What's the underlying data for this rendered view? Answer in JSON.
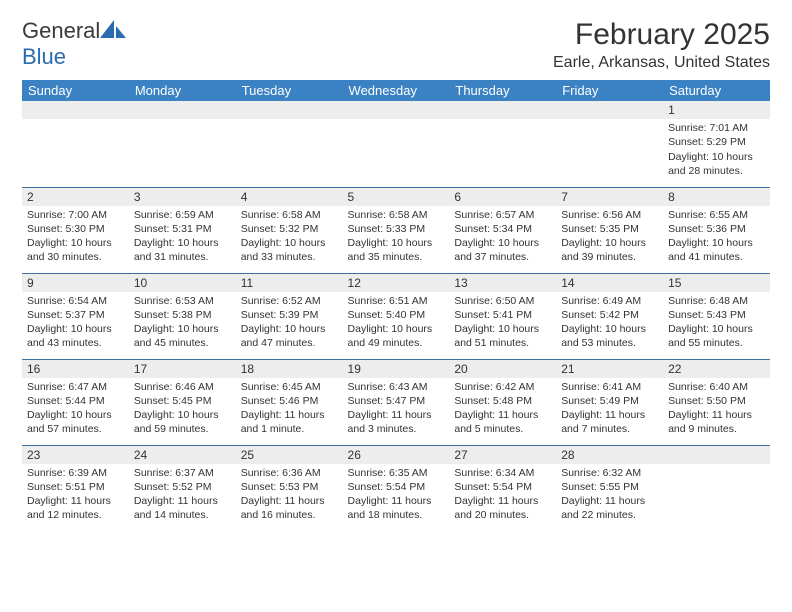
{
  "brand": {
    "name_part1": "General",
    "name_part2": "Blue",
    "icon_color": "#2b6cb0"
  },
  "title": {
    "month_year": "February 2025",
    "location": "Earle, Arkansas, United States"
  },
  "styling": {
    "header_bg": "#3b82c4",
    "header_text": "#ffffff",
    "daynum_bg": "#ededed",
    "border_color": "#3b6fa0",
    "body_text": "#333333",
    "title_fontsize": 30,
    "location_fontsize": 16,
    "day_fontsize": 10.5
  },
  "weekdays": [
    "Sunday",
    "Monday",
    "Tuesday",
    "Wednesday",
    "Thursday",
    "Friday",
    "Saturday"
  ],
  "weeks": [
    [
      {
        "n": "",
        "sunrise": "",
        "sunset": "",
        "daylight": ""
      },
      {
        "n": "",
        "sunrise": "",
        "sunset": "",
        "daylight": ""
      },
      {
        "n": "",
        "sunrise": "",
        "sunset": "",
        "daylight": ""
      },
      {
        "n": "",
        "sunrise": "",
        "sunset": "",
        "daylight": ""
      },
      {
        "n": "",
        "sunrise": "",
        "sunset": "",
        "daylight": ""
      },
      {
        "n": "",
        "sunrise": "",
        "sunset": "",
        "daylight": ""
      },
      {
        "n": "1",
        "sunrise": "Sunrise: 7:01 AM",
        "sunset": "Sunset: 5:29 PM",
        "daylight": "Daylight: 10 hours and 28 minutes."
      }
    ],
    [
      {
        "n": "2",
        "sunrise": "Sunrise: 7:00 AM",
        "sunset": "Sunset: 5:30 PM",
        "daylight": "Daylight: 10 hours and 30 minutes."
      },
      {
        "n": "3",
        "sunrise": "Sunrise: 6:59 AM",
        "sunset": "Sunset: 5:31 PM",
        "daylight": "Daylight: 10 hours and 31 minutes."
      },
      {
        "n": "4",
        "sunrise": "Sunrise: 6:58 AM",
        "sunset": "Sunset: 5:32 PM",
        "daylight": "Daylight: 10 hours and 33 minutes."
      },
      {
        "n": "5",
        "sunrise": "Sunrise: 6:58 AM",
        "sunset": "Sunset: 5:33 PM",
        "daylight": "Daylight: 10 hours and 35 minutes."
      },
      {
        "n": "6",
        "sunrise": "Sunrise: 6:57 AM",
        "sunset": "Sunset: 5:34 PM",
        "daylight": "Daylight: 10 hours and 37 minutes."
      },
      {
        "n": "7",
        "sunrise": "Sunrise: 6:56 AM",
        "sunset": "Sunset: 5:35 PM",
        "daylight": "Daylight: 10 hours and 39 minutes."
      },
      {
        "n": "8",
        "sunrise": "Sunrise: 6:55 AM",
        "sunset": "Sunset: 5:36 PM",
        "daylight": "Daylight: 10 hours and 41 minutes."
      }
    ],
    [
      {
        "n": "9",
        "sunrise": "Sunrise: 6:54 AM",
        "sunset": "Sunset: 5:37 PM",
        "daylight": "Daylight: 10 hours and 43 minutes."
      },
      {
        "n": "10",
        "sunrise": "Sunrise: 6:53 AM",
        "sunset": "Sunset: 5:38 PM",
        "daylight": "Daylight: 10 hours and 45 minutes."
      },
      {
        "n": "11",
        "sunrise": "Sunrise: 6:52 AM",
        "sunset": "Sunset: 5:39 PM",
        "daylight": "Daylight: 10 hours and 47 minutes."
      },
      {
        "n": "12",
        "sunrise": "Sunrise: 6:51 AM",
        "sunset": "Sunset: 5:40 PM",
        "daylight": "Daylight: 10 hours and 49 minutes."
      },
      {
        "n": "13",
        "sunrise": "Sunrise: 6:50 AM",
        "sunset": "Sunset: 5:41 PM",
        "daylight": "Daylight: 10 hours and 51 minutes."
      },
      {
        "n": "14",
        "sunrise": "Sunrise: 6:49 AM",
        "sunset": "Sunset: 5:42 PM",
        "daylight": "Daylight: 10 hours and 53 minutes."
      },
      {
        "n": "15",
        "sunrise": "Sunrise: 6:48 AM",
        "sunset": "Sunset: 5:43 PM",
        "daylight": "Daylight: 10 hours and 55 minutes."
      }
    ],
    [
      {
        "n": "16",
        "sunrise": "Sunrise: 6:47 AM",
        "sunset": "Sunset: 5:44 PM",
        "daylight": "Daylight: 10 hours and 57 minutes."
      },
      {
        "n": "17",
        "sunrise": "Sunrise: 6:46 AM",
        "sunset": "Sunset: 5:45 PM",
        "daylight": "Daylight: 10 hours and 59 minutes."
      },
      {
        "n": "18",
        "sunrise": "Sunrise: 6:45 AM",
        "sunset": "Sunset: 5:46 PM",
        "daylight": "Daylight: 11 hours and 1 minute."
      },
      {
        "n": "19",
        "sunrise": "Sunrise: 6:43 AM",
        "sunset": "Sunset: 5:47 PM",
        "daylight": "Daylight: 11 hours and 3 minutes."
      },
      {
        "n": "20",
        "sunrise": "Sunrise: 6:42 AM",
        "sunset": "Sunset: 5:48 PM",
        "daylight": "Daylight: 11 hours and 5 minutes."
      },
      {
        "n": "21",
        "sunrise": "Sunrise: 6:41 AM",
        "sunset": "Sunset: 5:49 PM",
        "daylight": "Daylight: 11 hours and 7 minutes."
      },
      {
        "n": "22",
        "sunrise": "Sunrise: 6:40 AM",
        "sunset": "Sunset: 5:50 PM",
        "daylight": "Daylight: 11 hours and 9 minutes."
      }
    ],
    [
      {
        "n": "23",
        "sunrise": "Sunrise: 6:39 AM",
        "sunset": "Sunset: 5:51 PM",
        "daylight": "Daylight: 11 hours and 12 minutes."
      },
      {
        "n": "24",
        "sunrise": "Sunrise: 6:37 AM",
        "sunset": "Sunset: 5:52 PM",
        "daylight": "Daylight: 11 hours and 14 minutes."
      },
      {
        "n": "25",
        "sunrise": "Sunrise: 6:36 AM",
        "sunset": "Sunset: 5:53 PM",
        "daylight": "Daylight: 11 hours and 16 minutes."
      },
      {
        "n": "26",
        "sunrise": "Sunrise: 6:35 AM",
        "sunset": "Sunset: 5:54 PM",
        "daylight": "Daylight: 11 hours and 18 minutes."
      },
      {
        "n": "27",
        "sunrise": "Sunrise: 6:34 AM",
        "sunset": "Sunset: 5:54 PM",
        "daylight": "Daylight: 11 hours and 20 minutes."
      },
      {
        "n": "28",
        "sunrise": "Sunrise: 6:32 AM",
        "sunset": "Sunset: 5:55 PM",
        "daylight": "Daylight: 11 hours and 22 minutes."
      },
      {
        "n": "",
        "sunrise": "",
        "sunset": "",
        "daylight": ""
      }
    ]
  ]
}
